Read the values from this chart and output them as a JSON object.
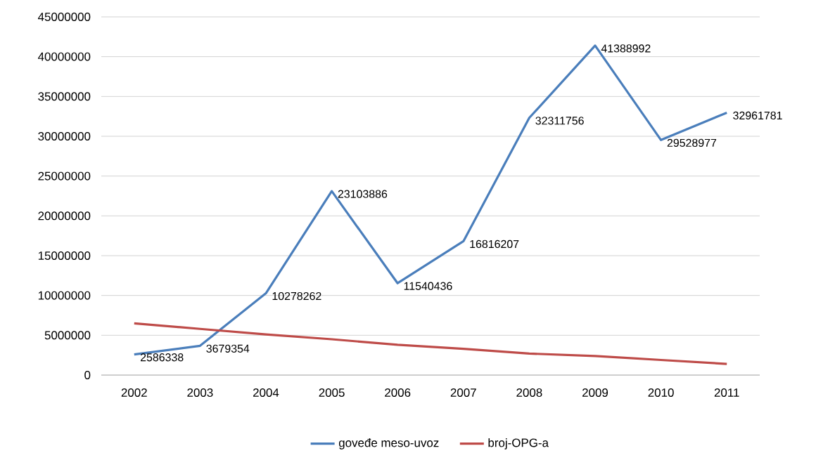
{
  "chart_data": {
    "type": "line",
    "categories": [
      "2002",
      "2003",
      "2004",
      "2005",
      "2006",
      "2007",
      "2008",
      "2009",
      "2010",
      "2011"
    ],
    "series": [
      {
        "name": "goveđe meso-uvoz",
        "color": "#4a7ebb",
        "values": [
          2586338,
          3679354,
          10278262,
          23103886,
          11540436,
          16816207,
          32311756,
          41388992,
          29528977,
          32961781
        ],
        "value_labels": [
          "2586338",
          "3679354",
          "10278262",
          "23103886",
          "11540436",
          "16816207",
          "32311756",
          "41388992",
          "29528977",
          "32961781"
        ]
      },
      {
        "name": "broj-OPG-a",
        "color": "#be4b48",
        "values": [
          6500000,
          5800000,
          5100000,
          4500000,
          3800000,
          3300000,
          2700000,
          2400000,
          1900000,
          1400000
        ]
      }
    ],
    "ylim": [
      0,
      45000000
    ],
    "yticks": [
      0,
      5000000,
      10000000,
      15000000,
      20000000,
      25000000,
      30000000,
      35000000,
      40000000,
      45000000
    ],
    "grid": "y",
    "legend": "bottom",
    "marker": "none",
    "line_style": "solid"
  }
}
